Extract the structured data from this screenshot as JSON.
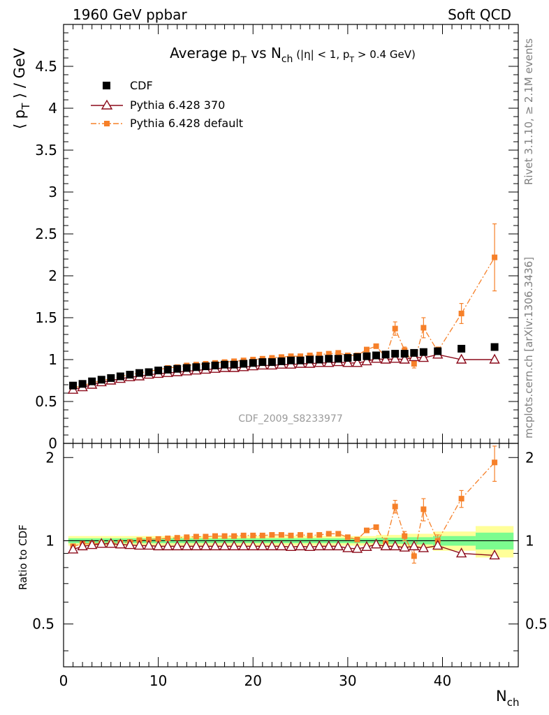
{
  "header": {
    "left": "1960 GeV ppbar",
    "right": "Soft QCD"
  },
  "side_text": {
    "rivet": "Rivet 3.1.10, ≥ 2.1M events",
    "mcplots": "mcplots.cern.ch [arXiv:1306.3436]"
  },
  "watermark": "CDF_2009_S8233977",
  "chart_data": {
    "type": "scatter",
    "title": "Average p_T vs N_ch (|η| < 1, p_T > 0.4 GeV)",
    "top_panel": {
      "ylabel": "⟨ p_T ⟩ / GeV",
      "ylim": [
        0,
        5.0
      ],
      "yticks": [
        "0",
        "0.5",
        "1",
        "1.5",
        "2",
        "2.5",
        "3",
        "3.5",
        "4",
        "4.5"
      ]
    },
    "ratio_panel": {
      "ylabel": "Ratio to CDF",
      "ylim": [
        0.35,
        2.25
      ],
      "yticks": [
        "0.5",
        "1",
        "2"
      ],
      "band_colors": {
        "inner": "#7cfc8f",
        "outer": "#ffff99"
      }
    },
    "xlabel": "N_ch",
    "xlim": [
      0,
      48
    ],
    "xticks": [
      "0",
      "10",
      "20",
      "30",
      "40"
    ],
    "legend_position": "top-left",
    "series": [
      {
        "name": "CDF",
        "color": "#000000",
        "marker": "square",
        "x": [
          1,
          2,
          3,
          4,
          5,
          6,
          7,
          8,
          9,
          10,
          11,
          12,
          13,
          14,
          15,
          16,
          17,
          18,
          19,
          20,
          21,
          22,
          23,
          24,
          25,
          26,
          27,
          28,
          29,
          30,
          31,
          32,
          33,
          34,
          35,
          36,
          37,
          38,
          39.5,
          42,
          45.5
        ],
        "y": [
          0.69,
          0.71,
          0.74,
          0.76,
          0.78,
          0.8,
          0.82,
          0.84,
          0.85,
          0.87,
          0.88,
          0.89,
          0.9,
          0.91,
          0.92,
          0.93,
          0.94,
          0.94,
          0.95,
          0.96,
          0.97,
          0.97,
          0.98,
          0.99,
          0.99,
          1.0,
          1.0,
          1.01,
          1.01,
          1.02,
          1.03,
          1.04,
          1.05,
          1.06,
          1.07,
          1.07,
          1.08,
          1.09,
          1.1,
          1.13,
          1.15
        ],
        "ratio": [
          1,
          1,
          1,
          1,
          1,
          1,
          1,
          1,
          1,
          1,
          1,
          1,
          1,
          1,
          1,
          1,
          1,
          1,
          1,
          1,
          1,
          1,
          1,
          1,
          1,
          1,
          1,
          1,
          1,
          1,
          1,
          1,
          1,
          1,
          1,
          1,
          1,
          1,
          1,
          1,
          1
        ]
      },
      {
        "name": "Pythia 6.428 370",
        "color": "#8b0a1a",
        "marker": "open-triangle",
        "x": [
          1,
          2,
          3,
          4,
          5,
          6,
          7,
          8,
          9,
          10,
          11,
          12,
          13,
          14,
          15,
          16,
          17,
          18,
          19,
          20,
          21,
          22,
          23,
          24,
          25,
          26,
          27,
          28,
          29,
          30,
          31,
          32,
          33,
          34,
          35,
          36,
          37,
          38,
          39.5,
          42,
          45.5
        ],
        "y": [
          0.64,
          0.67,
          0.7,
          0.73,
          0.75,
          0.77,
          0.79,
          0.8,
          0.82,
          0.83,
          0.84,
          0.85,
          0.86,
          0.87,
          0.88,
          0.89,
          0.9,
          0.9,
          0.91,
          0.92,
          0.93,
          0.93,
          0.94,
          0.94,
          0.95,
          0.95,
          0.96,
          0.96,
          0.97,
          0.96,
          0.96,
          0.98,
          1.01,
          1.0,
          1.01,
          1.0,
          1.03,
          1.02,
          1.06,
          1.0,
          1.0
        ],
        "ratio": [
          0.93,
          0.955,
          0.965,
          0.975,
          0.975,
          0.97,
          0.965,
          0.96,
          0.96,
          0.955,
          0.955,
          0.955,
          0.955,
          0.955,
          0.955,
          0.955,
          0.955,
          0.955,
          0.955,
          0.955,
          0.955,
          0.955,
          0.955,
          0.95,
          0.955,
          0.95,
          0.955,
          0.955,
          0.955,
          0.94,
          0.935,
          0.95,
          0.97,
          0.955,
          0.955,
          0.945,
          0.955,
          0.94,
          0.96,
          0.9,
          0.885
        ]
      },
      {
        "name": "Pythia 6.428 default",
        "color": "#f68029",
        "marker": "square",
        "x": [
          1,
          2,
          3,
          4,
          5,
          6,
          7,
          8,
          9,
          10,
          11,
          12,
          13,
          14,
          15,
          16,
          17,
          18,
          19,
          20,
          21,
          22,
          23,
          24,
          25,
          26,
          27,
          28,
          29,
          30,
          31,
          32,
          33,
          34,
          35,
          36,
          37,
          38,
          39.5,
          42,
          45.5
        ],
        "y": [
          0.66,
          0.69,
          0.72,
          0.75,
          0.77,
          0.8,
          0.82,
          0.84,
          0.86,
          0.88,
          0.9,
          0.91,
          0.93,
          0.94,
          0.95,
          0.96,
          0.97,
          0.98,
          0.99,
          1.0,
          1.01,
          1.02,
          1.03,
          1.04,
          1.04,
          1.05,
          1.06,
          1.07,
          1.08,
          1.05,
          1.05,
          1.12,
          1.16,
          1.03,
          1.37,
          1.11,
          0.95,
          1.38,
          1.1,
          1.55,
          2.22
        ],
        "yerr": [
          0.01,
          0.01,
          0.01,
          0.01,
          0.01,
          0.01,
          0.01,
          0.01,
          0.01,
          0.01,
          0.01,
          0.01,
          0.01,
          0.01,
          0.01,
          0.01,
          0.01,
          0.01,
          0.01,
          0.01,
          0.01,
          0.01,
          0.01,
          0.01,
          0.01,
          0.01,
          0.01,
          0.01,
          0.01,
          0.01,
          0.02,
          0.02,
          0.02,
          0.04,
          0.08,
          0.04,
          0.05,
          0.12,
          0.05,
          0.12,
          0.4
        ],
        "ratio": [
          0.955,
          0.975,
          0.975,
          0.98,
          0.98,
          0.985,
          0.99,
          1.005,
          1.01,
          1.015,
          1.02,
          1.025,
          1.03,
          1.035,
          1.035,
          1.04,
          1.04,
          1.04,
          1.045,
          1.045,
          1.045,
          1.05,
          1.05,
          1.045,
          1.05,
          1.045,
          1.05,
          1.06,
          1.06,
          1.03,
          1.01,
          1.09,
          1.12,
          0.98,
          1.33,
          1.04,
          0.88,
          1.3,
          1.0,
          1.42,
          1.92
        ],
        "ratio_err": [
          0.01,
          0.01,
          0.01,
          0.01,
          0.01,
          0.01,
          0.01,
          0.01,
          0.01,
          0.01,
          0.01,
          0.01,
          0.01,
          0.01,
          0.01,
          0.01,
          0.01,
          0.01,
          0.01,
          0.01,
          0.01,
          0.01,
          0.01,
          0.01,
          0.01,
          0.01,
          0.01,
          0.01,
          0.01,
          0.01,
          0.015,
          0.02,
          0.02,
          0.04,
          0.07,
          0.04,
          0.05,
          0.12,
          0.05,
          0.1,
          0.28
        ]
      }
    ],
    "ratio_bands": {
      "x_edges": [
        0.5,
        30,
        33,
        36,
        39,
        43.5,
        47.5
      ],
      "inner": [
        0.02,
        0.02,
        0.025,
        0.03,
        0.04,
        0.07
      ],
      "outer": [
        0.04,
        0.04,
        0.05,
        0.06,
        0.08,
        0.13
      ]
    }
  }
}
